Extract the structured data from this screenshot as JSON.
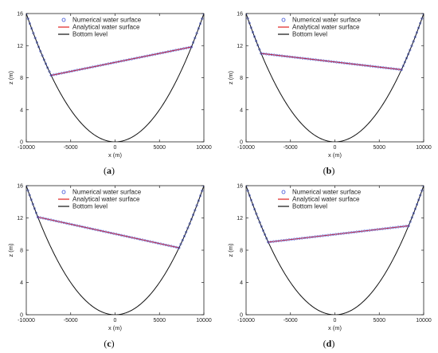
{
  "chart_data": [
    {
      "panel": "a",
      "type": "line",
      "xlabel": "x (m)",
      "ylabel": "z (m)",
      "xlim": [
        -10000,
        10000
      ],
      "ylim": [
        0,
        16
      ],
      "xticks": [
        "-10000",
        "-5000",
        "0",
        "5000",
        "10000"
      ],
      "yticks": [
        "0",
        "4",
        "8",
        "12",
        "16"
      ],
      "water_left_x": -7200,
      "water_right_x": 8600,
      "bottom_depth_coef": 16,
      "legend": [
        "Numerical water surface",
        "Analytical  water surface",
        "Bottom level"
      ],
      "colors": {
        "numerical": "#3a4fd8",
        "analytical": "#e02020",
        "bottom": "#111111"
      }
    },
    {
      "panel": "b",
      "type": "line",
      "xlabel": "x (m)",
      "ylabel": "z (m)",
      "xlim": [
        -10000,
        10000
      ],
      "ylim": [
        0,
        16
      ],
      "xticks": [
        "-10000",
        "-5000",
        "0",
        "5000",
        "10000"
      ],
      "yticks": [
        "0",
        "4",
        "8",
        "12",
        "16"
      ],
      "water_left_x": -8300,
      "water_right_x": 7500,
      "bottom_depth_coef": 16,
      "legend": [
        "Numerical water surface",
        "Analytical  water surface",
        "Bottom level"
      ],
      "colors": {
        "numerical": "#3a4fd8",
        "analytical": "#e02020",
        "bottom": "#111111"
      }
    },
    {
      "panel": "c",
      "type": "line",
      "xlabel": "x (m)",
      "ylabel": "z (m)",
      "xlim": [
        -10000,
        10000
      ],
      "ylim": [
        0,
        16
      ],
      "xticks": [
        "-10000",
        "-5000",
        "0",
        "5000",
        "10000"
      ],
      "yticks": [
        "0",
        "4",
        "8",
        "12",
        "16"
      ],
      "water_left_x": -8700,
      "water_right_x": 7200,
      "bottom_depth_coef": 16,
      "legend": [
        "Numerical water surface",
        "Analytical  water surface",
        "Bottom level"
      ],
      "colors": {
        "numerical": "#3a4fd8",
        "analytical": "#e02020",
        "bottom": "#111111"
      }
    },
    {
      "panel": "d",
      "type": "line",
      "xlabel": "x (m)",
      "ylabel": "z (m)",
      "xlim": [
        -10000,
        10000
      ],
      "ylim": [
        0,
        16
      ],
      "xticks": [
        "-10000",
        "-5000",
        "0",
        "5000",
        "10000"
      ],
      "yticks": [
        "0",
        "4",
        "8",
        "12",
        "16"
      ],
      "water_left_x": -7500,
      "water_right_x": 8300,
      "bottom_depth_coef": 16,
      "legend": [
        "Numerical water surface",
        "Analytical  water surface",
        "Bottom level"
      ],
      "colors": {
        "numerical": "#3a4fd8",
        "analytical": "#e02020",
        "bottom": "#111111"
      }
    }
  ],
  "panel_labels": [
    "(a)",
    "(b)",
    "(c)",
    "(d)"
  ]
}
